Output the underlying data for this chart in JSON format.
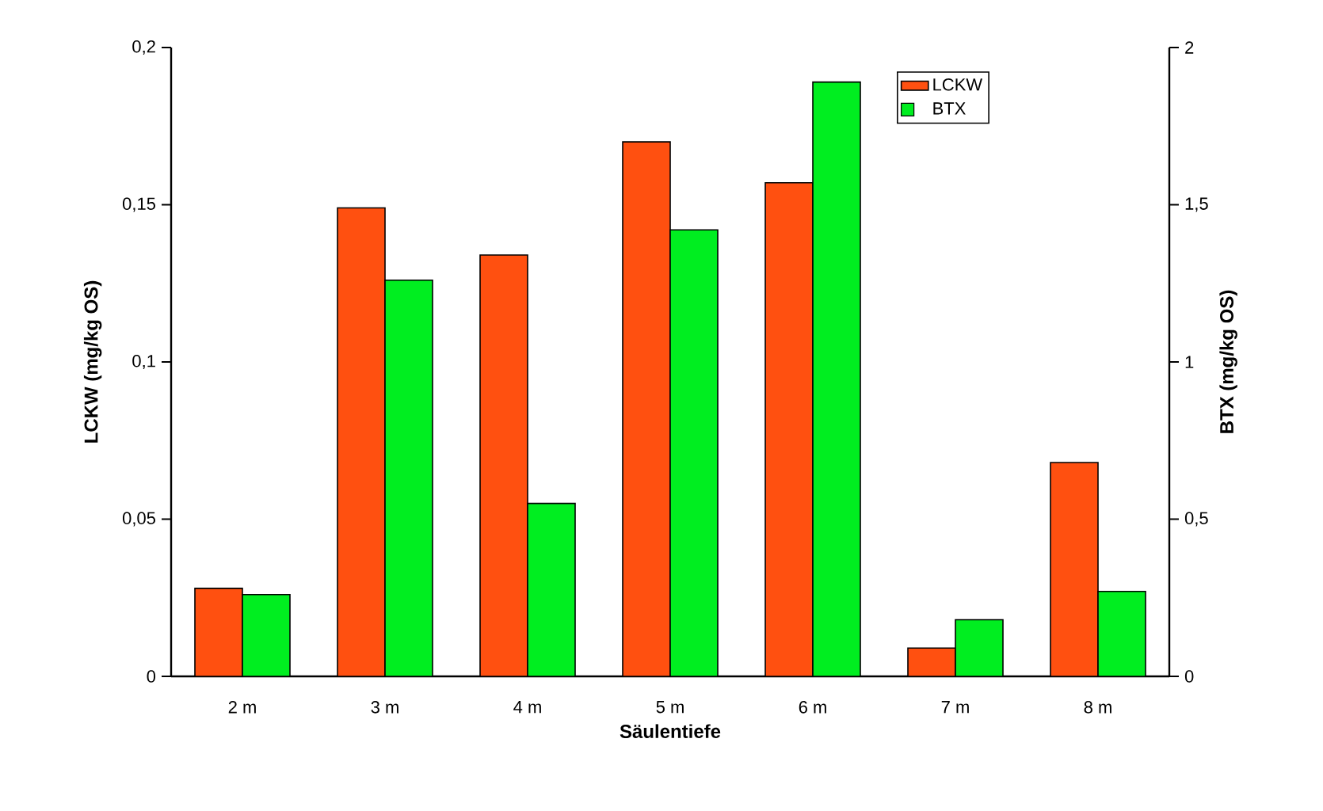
{
  "chart_data": {
    "type": "bar",
    "xlabel": "Säulentiefe",
    "ylabel": "LCKW (mg/kg OS)",
    "y2label": "BTX (mg/kg OS)",
    "categories": [
      "2 m",
      "3 m",
      "4 m",
      "5 m",
      "6 m",
      "7 m",
      "8 m"
    ],
    "series": [
      {
        "name": "LCKW",
        "color": "#ff5010",
        "values": [
          0.028,
          0.149,
          0.134,
          0.17,
          0.157,
          0.009,
          0.068
        ]
      },
      {
        "name": "BTX",
        "color": "#00ee20",
        "axis": "y2",
        "values": [
          0.26,
          1.26,
          0.55,
          1.42,
          1.89,
          0.18,
          0.27
        ]
      }
    ],
    "ylim": [
      0,
      0.2
    ],
    "yticks": [
      {
        "value": 0,
        "label": "0"
      },
      {
        "value": 0.05,
        "label": "0,05"
      },
      {
        "value": 0.1,
        "label": "0,1"
      },
      {
        "value": 0.15,
        "label": "0,15"
      },
      {
        "value": 0.2,
        "label": "0,2"
      }
    ],
    "y2lim": [
      0,
      2
    ],
    "y2ticks": [
      {
        "value": 0,
        "label": "0"
      },
      {
        "value": 0.5,
        "label": "0,5"
      },
      {
        "value": 1,
        "label": "1"
      },
      {
        "value": 1.5,
        "label": "1,5"
      },
      {
        "value": 2,
        "label": "2"
      }
    ],
    "legend": "top right",
    "grid": false
  }
}
